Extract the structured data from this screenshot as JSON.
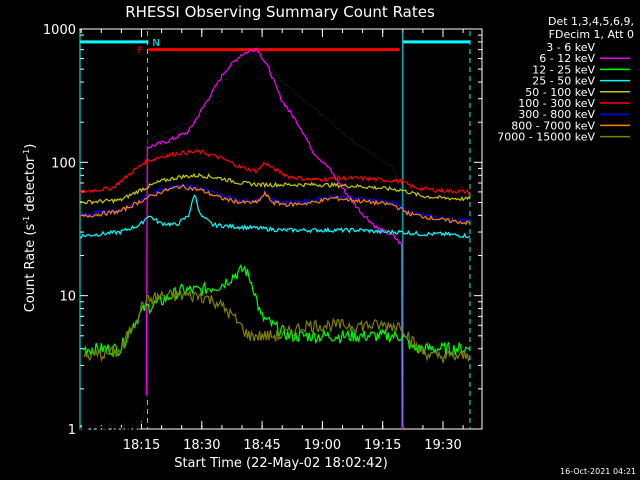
{
  "chart_data": {
    "type": "line",
    "title": "RHESSI Observing Summary Count Rates",
    "xlabel": "Start Time (22-May-02 18:02:42)",
    "ylabel_main": "Count Rate (s",
    "ylabel_sup1": "-1",
    "ylabel_mid": " detector",
    "ylabel_sup2": "-1",
    "ylabel_end": ")",
    "yscale": "log",
    "ylim": [
      1,
      1000
    ],
    "xlim_minutes": [
      0,
      100
    ],
    "yticks": [
      {
        "v": 1,
        "label": "1"
      },
      {
        "v": 10,
        "label": "10"
      },
      {
        "v": 100,
        "label": "100"
      },
      {
        "v": 1000,
        "label": "1000"
      }
    ],
    "xticks": [
      {
        "m": 15.3,
        "label": "18:15"
      },
      {
        "m": 30.3,
        "label": "18:30"
      },
      {
        "m": 45.3,
        "label": "18:45"
      },
      {
        "m": 60.3,
        "label": "19:00"
      },
      {
        "m": 75.3,
        "label": "19:15"
      },
      {
        "m": 90.3,
        "label": "19:30"
      }
    ],
    "legend_header": [
      "Det 1,3,4,5,6,9,",
      "FDecim 1, Att 0"
    ],
    "series": [
      {
        "name": "3 - 6 keV",
        "color": "#000000",
        "points": [
          [
            0,
            1
          ],
          [
            15,
            1
          ],
          [
            16.8,
            1.8
          ],
          [
            17,
            150
          ],
          [
            22,
            170
          ],
          [
            27,
            200
          ],
          [
            30,
            260
          ],
          [
            35,
            380
          ],
          [
            40,
            560
          ],
          [
            44,
            650
          ],
          [
            47,
            560
          ],
          [
            50,
            420
          ],
          [
            55,
            300
          ],
          [
            60,
            230
          ],
          [
            65,
            170
          ],
          [
            70,
            130
          ],
          [
            75,
            105
          ],
          [
            78,
            90
          ],
          [
            80,
            70
          ],
          [
            80.2,
            1
          ]
        ]
      },
      {
        "name": "6 - 12 keV",
        "color": "#ff00ff",
        "points": [
          [
            16.5,
            2
          ],
          [
            17,
            130
          ],
          [
            22,
            145
          ],
          [
            27,
            170
          ],
          [
            30,
            240
          ],
          [
            33,
            340
          ],
          [
            36,
            480
          ],
          [
            40,
            640
          ],
          [
            44,
            720
          ],
          [
            47,
            500
          ],
          [
            50,
            300
          ],
          [
            55,
            180
          ],
          [
            58,
            120
          ],
          [
            62,
            90
          ],
          [
            66,
            60
          ],
          [
            70,
            42
          ],
          [
            74,
            32
          ],
          [
            78,
            28
          ],
          [
            80,
            24
          ],
          [
            80.2,
            1
          ]
        ]
      },
      {
        "name": "12 - 25 keV",
        "color": "#00ff00",
        "points": [
          [
            1,
            4
          ],
          [
            10,
            4
          ],
          [
            13,
            6
          ],
          [
            16,
            8
          ],
          [
            20,
            9
          ],
          [
            25,
            11
          ],
          [
            30,
            11
          ],
          [
            35,
            12
          ],
          [
            38,
            14
          ],
          [
            41,
            16
          ],
          [
            43,
            12
          ],
          [
            45,
            7
          ],
          [
            48,
            6
          ],
          [
            52,
            5
          ],
          [
            58,
            5
          ],
          [
            64,
            5
          ],
          [
            70,
            5
          ],
          [
            76,
            5
          ],
          [
            80,
            5
          ],
          [
            83,
            4
          ],
          [
            86,
            4
          ],
          [
            90,
            4
          ],
          [
            97,
            4
          ]
        ]
      },
      {
        "name": "25 - 50 keV",
        "color": "#00ffff",
        "points": [
          [
            0,
            28
          ],
          [
            10,
            30
          ],
          [
            15,
            34
          ],
          [
            17,
            40
          ],
          [
            20,
            35
          ],
          [
            24,
            34
          ],
          [
            27,
            40
          ],
          [
            28.5,
            58
          ],
          [
            30,
            40
          ],
          [
            33,
            34
          ],
          [
            38,
            33
          ],
          [
            45,
            32
          ],
          [
            50,
            31
          ],
          [
            55,
            31
          ],
          [
            60,
            31
          ],
          [
            65,
            31
          ],
          [
            70,
            31
          ],
          [
            75,
            30
          ],
          [
            80,
            30
          ],
          [
            85,
            29
          ],
          [
            90,
            29
          ],
          [
            97,
            28
          ]
        ]
      },
      {
        "name": "50 - 100 keV",
        "color": "#c8c800",
        "points": [
          [
            0,
            50
          ],
          [
            10,
            52
          ],
          [
            15,
            62
          ],
          [
            20,
            72
          ],
          [
            25,
            78
          ],
          [
            30,
            80
          ],
          [
            35,
            76
          ],
          [
            40,
            70
          ],
          [
            45,
            68
          ],
          [
            50,
            68
          ],
          [
            55,
            68
          ],
          [
            60,
            68
          ],
          [
            65,
            67
          ],
          [
            70,
            66
          ],
          [
            75,
            64
          ],
          [
            80,
            62
          ],
          [
            85,
            56
          ],
          [
            90,
            54
          ],
          [
            97,
            53
          ]
        ]
      },
      {
        "name": "100 - 300 keV",
        "color": "#ff0000",
        "points": [
          [
            0,
            60
          ],
          [
            8,
            64
          ],
          [
            12,
            80
          ],
          [
            16,
            100
          ],
          [
            20,
            110
          ],
          [
            25,
            118
          ],
          [
            30,
            120
          ],
          [
            35,
            108
          ],
          [
            40,
            92
          ],
          [
            44,
            86
          ],
          [
            46,
            100
          ],
          [
            48,
            90
          ],
          [
            52,
            78
          ],
          [
            58,
            74
          ],
          [
            64,
            76
          ],
          [
            70,
            76
          ],
          [
            75,
            74
          ],
          [
            80,
            72
          ],
          [
            83,
            65
          ],
          [
            88,
            62
          ],
          [
            97,
            60
          ]
        ]
      },
      {
        "name": "300 - 800 keV",
        "color": "#0000ff",
        "points": [
          [
            0,
            40
          ],
          [
            10,
            44
          ],
          [
            15,
            52
          ],
          [
            20,
            62
          ],
          [
            25,
            68
          ],
          [
            30,
            64
          ],
          [
            35,
            56
          ],
          [
            40,
            52
          ],
          [
            44,
            52
          ],
          [
            46,
            60
          ],
          [
            48,
            52
          ],
          [
            52,
            50
          ],
          [
            58,
            52
          ],
          [
            63,
            56
          ],
          [
            68,
            54
          ],
          [
            73,
            52
          ],
          [
            78,
            50
          ],
          [
            82,
            42
          ],
          [
            86,
            40
          ],
          [
            90,
            38
          ],
          [
            97,
            36
          ]
        ]
      },
      {
        "name": "800 - 7000 keV",
        "color": "#ff8000",
        "points": [
          [
            0,
            39
          ],
          [
            10,
            43
          ],
          [
            15,
            51
          ],
          [
            20,
            60
          ],
          [
            25,
            66
          ],
          [
            30,
            62
          ],
          [
            35,
            54
          ],
          [
            40,
            50
          ],
          [
            44,
            50
          ],
          [
            46,
            58
          ],
          [
            48,
            50
          ],
          [
            52,
            48
          ],
          [
            58,
            50
          ],
          [
            63,
            54
          ],
          [
            68,
            52
          ],
          [
            73,
            50
          ],
          [
            78,
            48
          ],
          [
            82,
            41
          ],
          [
            86,
            39
          ],
          [
            90,
            37
          ],
          [
            97,
            35
          ]
        ]
      },
      {
        "name": "7000 - 15000 keV",
        "color": "#808000",
        "points": [
          [
            1,
            3.5
          ],
          [
            10,
            3.8
          ],
          [
            13,
            6
          ],
          [
            16,
            9
          ],
          [
            20,
            10
          ],
          [
            25,
            10
          ],
          [
            30,
            10
          ],
          [
            34,
            9
          ],
          [
            38,
            7
          ],
          [
            42,
            5
          ],
          [
            46,
            5
          ],
          [
            50,
            5
          ],
          [
            56,
            6
          ],
          [
            62,
            6
          ],
          [
            68,
            6
          ],
          [
            74,
            6
          ],
          [
            80,
            6
          ],
          [
            84,
            4
          ],
          [
            88,
            3.5
          ],
          [
            93,
            3.5
          ],
          [
            97,
            3.5
          ]
        ]
      }
    ],
    "attenuator_bar": {
      "label": "F",
      "color": "#ff0000",
      "y": 700,
      "start": 17,
      "end": 79.5
    },
    "night_bars": [
      {
        "label": "N",
        "color": "#00ffff",
        "y": 800,
        "start": 0,
        "end": 17
      },
      {
        "label": "",
        "color": "#00ffff",
        "y": 800,
        "start": 80.3,
        "end": 97
      }
    ],
    "vlines": [
      {
        "m": 16.8,
        "color": "#00ffff",
        "dash": true
      },
      {
        "m": 80.3,
        "color": "#00ffff",
        "dash": false
      },
      {
        "m": 97,
        "color": "#00ffff",
        "dash": true
      },
      {
        "m": 0,
        "color": "#00ffff",
        "dash": false
      }
    ],
    "timestamp": "16-Oct-2021 04:21"
  }
}
